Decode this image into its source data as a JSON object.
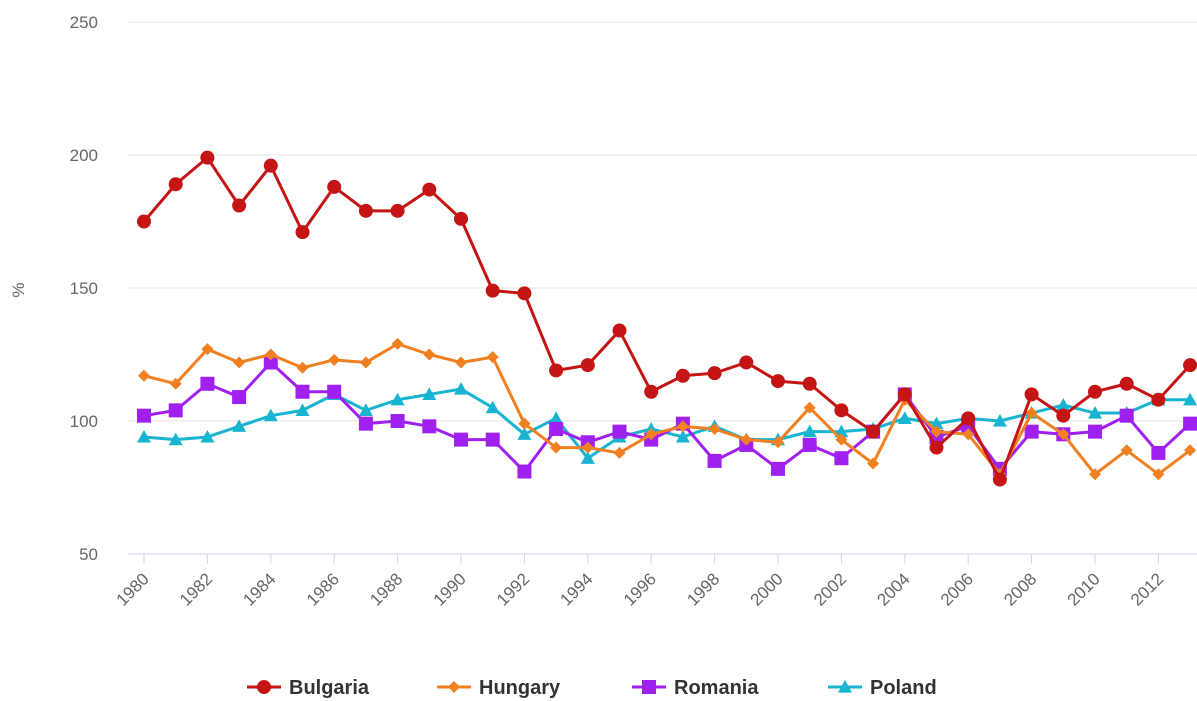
{
  "chart_data": {
    "type": "line",
    "title": "",
    "xlabel": "",
    "ylabel": "%",
    "ylim": [
      50,
      250
    ],
    "yticks": [
      50,
      100,
      150,
      200,
      250
    ],
    "xlim": [
      1980,
      2013
    ],
    "xticks": [
      1980,
      1982,
      1984,
      1986,
      1988,
      1990,
      1992,
      1994,
      1996,
      1998,
      2000,
      2002,
      2004,
      2006,
      2008,
      2010,
      2012
    ],
    "x": [
      1980,
      1981,
      1982,
      1983,
      1984,
      1985,
      1986,
      1987,
      1988,
      1989,
      1990,
      1991,
      1992,
      1993,
      1994,
      1995,
      1996,
      1997,
      1998,
      1999,
      2000,
      2001,
      2002,
      2003,
      2004,
      2005,
      2006,
      2007,
      2008,
      2009,
      2010,
      2011,
      2012,
      2013
    ],
    "grid": true,
    "legend_position": "bottom",
    "series": [
      {
        "name": "Bulgaria",
        "color": "#c41414",
        "marker": "circle",
        "values": [
          175,
          189,
          199,
          181,
          196,
          171,
          188,
          179,
          179,
          187,
          176,
          149,
          148,
          119,
          121,
          134,
          111,
          117,
          118,
          122,
          115,
          114,
          104,
          96,
          110,
          90,
          101,
          78,
          110,
          102,
          111,
          114,
          108,
          121
        ]
      },
      {
        "name": "Hungary",
        "color": "#f08020",
        "marker": "diamond",
        "values": [
          117,
          114,
          127,
          122,
          125,
          120,
          123,
          122,
          129,
          125,
          122,
          124,
          99,
          90,
          90,
          88,
          95,
          98,
          97,
          93,
          92,
          105,
          93,
          84,
          108,
          96,
          95,
          80,
          103,
          95,
          80,
          89,
          80,
          89
        ]
      },
      {
        "name": "Romania",
        "color": "#a020f0",
        "marker": "square",
        "values": [
          102,
          104,
          114,
          109,
          122,
          111,
          111,
          99,
          100,
          98,
          93,
          93,
          81,
          97,
          92,
          96,
          93,
          99,
          85,
          91,
          82,
          91,
          86,
          96,
          110,
          94,
          98,
          82,
          96,
          95,
          96,
          102,
          88,
          99
        ]
      },
      {
        "name": "Poland",
        "color": "#18b4d0",
        "marker": "triangle",
        "values": [
          94,
          93,
          94,
          98,
          102,
          104,
          110,
          104,
          108,
          110,
          112,
          105,
          95,
          101,
          86,
          94,
          97,
          94,
          98,
          93,
          93,
          96,
          96,
          97,
          101,
          99,
          101,
          100,
          103,
          106,
          103,
          103,
          108,
          108
        ]
      }
    ]
  }
}
